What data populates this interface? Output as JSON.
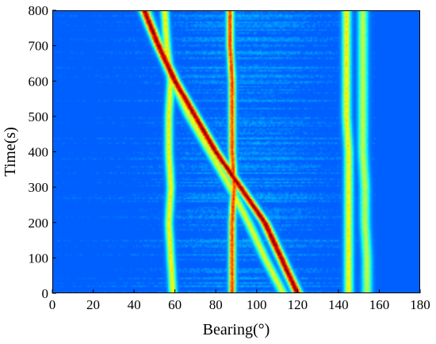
{
  "chart_data": {
    "type": "heatmap",
    "title": "",
    "xlabel": "Bearing(°)",
    "ylabel": "Time(s)",
    "xlim": [
      0,
      180
    ],
    "ylim": [
      0,
      800
    ],
    "xticks": [
      0,
      20,
      40,
      60,
      80,
      100,
      120,
      140,
      160,
      180
    ],
    "yticks": [
      0,
      100,
      200,
      300,
      400,
      500,
      600,
      700,
      800
    ],
    "colormap": "jet",
    "grid": false,
    "legend": "none",
    "colors": {
      "background": "#0000a8",
      "low": "#1a4fd8",
      "mid": "#21d0e0",
      "high": "#d81a00"
    },
    "tracks": [
      {
        "kind": "moving",
        "intensity": 1.0,
        "width_deg": 2.2,
        "points": [
          [
            0,
            120
          ],
          [
            100,
            112
          ],
          [
            200,
            104
          ],
          [
            300,
            92
          ],
          [
            400,
            80
          ],
          [
            500,
            70
          ],
          [
            600,
            60
          ],
          [
            700,
            52
          ],
          [
            800,
            45
          ]
        ]
      },
      {
        "kind": "moving",
        "intensity": 0.5,
        "width_deg": 2.2,
        "points": [
          [
            0,
            113
          ],
          [
            100,
            104
          ],
          [
            200,
            96
          ],
          [
            300,
            87
          ],
          [
            400,
            77
          ],
          [
            500,
            67
          ],
          [
            600,
            59
          ],
          [
            700,
            52
          ],
          [
            800,
            46
          ]
        ]
      },
      {
        "kind": "constant",
        "intensity": 0.55,
        "width_deg": 1.8,
        "points": [
          [
            0,
            59
          ],
          [
            100,
            58
          ],
          [
            200,
            57
          ],
          [
            300,
            58
          ],
          [
            400,
            57
          ],
          [
            500,
            57
          ],
          [
            600,
            58
          ],
          [
            700,
            56
          ],
          [
            800,
            55
          ]
        ]
      },
      {
        "kind": "constant",
        "intensity": 0.8,
        "width_deg": 1.6,
        "points": [
          [
            0,
            88
          ],
          [
            100,
            88
          ],
          [
            200,
            88
          ],
          [
            300,
            89
          ],
          [
            400,
            88
          ],
          [
            500,
            88
          ],
          [
            600,
            88
          ],
          [
            700,
            87
          ],
          [
            800,
            87
          ]
        ]
      },
      {
        "kind": "constant",
        "intensity": 0.55,
        "width_deg": 2.0,
        "points": [
          [
            0,
            145
          ],
          [
            100,
            145
          ],
          [
            200,
            145
          ],
          [
            300,
            145
          ],
          [
            400,
            145
          ],
          [
            500,
            144
          ],
          [
            600,
            144
          ],
          [
            700,
            144
          ],
          [
            800,
            144
          ]
        ]
      },
      {
        "kind": "constant",
        "intensity": 0.45,
        "width_deg": 2.2,
        "points": [
          [
            0,
            154
          ],
          [
            100,
            154
          ],
          [
            200,
            153
          ],
          [
            300,
            153
          ],
          [
            400,
            152
          ],
          [
            500,
            152
          ],
          [
            600,
            152
          ],
          [
            700,
            152
          ],
          [
            800,
            152
          ]
        ]
      }
    ]
  }
}
